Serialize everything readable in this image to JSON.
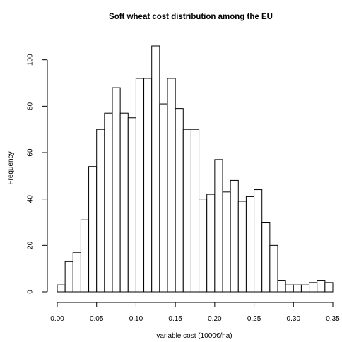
{
  "chart_data": {
    "type": "bar",
    "subtype": "histogram",
    "title": "Soft wheat cost distribution among the EU",
    "xlabel": "variable cost (1000€/ha)",
    "ylabel": "Frequency",
    "bin_width": 0.01,
    "xlim": [
      0.0,
      0.35
    ],
    "ylim": [
      0,
      106
    ],
    "x_ticks": [
      0.0,
      0.05,
      0.1,
      0.15,
      0.2,
      0.25,
      0.3,
      0.35
    ],
    "x_tick_labels": [
      "0.00",
      "0.05",
      "0.10",
      "0.15",
      "0.20",
      "0.25",
      "0.30",
      "0.35"
    ],
    "y_ticks": [
      0,
      20,
      40,
      60,
      80,
      100
    ],
    "y_tick_labels": [
      "0",
      "20",
      "40",
      "60",
      "80",
      "100"
    ],
    "grid": false,
    "legend": "none",
    "bars": [
      {
        "x0": 0.0,
        "x1": 0.01,
        "value": 3
      },
      {
        "x0": 0.01,
        "x1": 0.02,
        "value": 13
      },
      {
        "x0": 0.02,
        "x1": 0.03,
        "value": 17
      },
      {
        "x0": 0.03,
        "x1": 0.04,
        "value": 31
      },
      {
        "x0": 0.04,
        "x1": 0.05,
        "value": 54
      },
      {
        "x0": 0.05,
        "x1": 0.06,
        "value": 70
      },
      {
        "x0": 0.06,
        "x1": 0.07,
        "value": 77
      },
      {
        "x0": 0.07,
        "x1": 0.08,
        "value": 88
      },
      {
        "x0": 0.08,
        "x1": 0.09,
        "value": 77
      },
      {
        "x0": 0.09,
        "x1": 0.1,
        "value": 75
      },
      {
        "x0": 0.1,
        "x1": 0.11,
        "value": 92
      },
      {
        "x0": 0.11,
        "x1": 0.12,
        "value": 92
      },
      {
        "x0": 0.12,
        "x1": 0.13,
        "value": 106
      },
      {
        "x0": 0.13,
        "x1": 0.14,
        "value": 81
      },
      {
        "x0": 0.14,
        "x1": 0.15,
        "value": 92
      },
      {
        "x0": 0.15,
        "x1": 0.16,
        "value": 79
      },
      {
        "x0": 0.16,
        "x1": 0.17,
        "value": 70
      },
      {
        "x0": 0.17,
        "x1": 0.18,
        "value": 70
      },
      {
        "x0": 0.18,
        "x1": 0.19,
        "value": 40
      },
      {
        "x0": 0.19,
        "x1": 0.2,
        "value": 42
      },
      {
        "x0": 0.2,
        "x1": 0.21,
        "value": 57
      },
      {
        "x0": 0.21,
        "x1": 0.22,
        "value": 43
      },
      {
        "x0": 0.22,
        "x1": 0.23,
        "value": 48
      },
      {
        "x0": 0.23,
        "x1": 0.24,
        "value": 39
      },
      {
        "x0": 0.24,
        "x1": 0.25,
        "value": 41
      },
      {
        "x0": 0.25,
        "x1": 0.26,
        "value": 44
      },
      {
        "x0": 0.26,
        "x1": 0.27,
        "value": 30
      },
      {
        "x0": 0.27,
        "x1": 0.28,
        "value": 20
      },
      {
        "x0": 0.28,
        "x1": 0.29,
        "value": 5
      },
      {
        "x0": 0.29,
        "x1": 0.3,
        "value": 3
      },
      {
        "x0": 0.3,
        "x1": 0.31,
        "value": 3
      },
      {
        "x0": 0.31,
        "x1": 0.32,
        "value": 3
      },
      {
        "x0": 0.32,
        "x1": 0.33,
        "value": 4
      },
      {
        "x0": 0.33,
        "x1": 0.34,
        "value": 5
      },
      {
        "x0": 0.34,
        "x1": 0.35,
        "value": 4
      }
    ],
    "colors": {
      "bar_fill": "#ffffff",
      "bar_stroke": "#000000",
      "text": "#000000"
    }
  }
}
